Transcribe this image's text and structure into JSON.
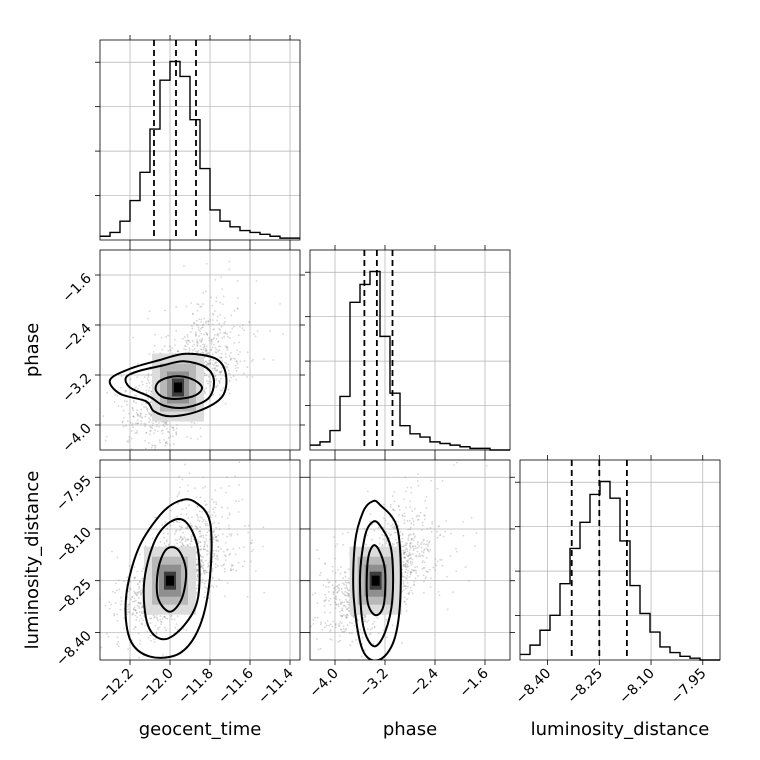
{
  "chart_data": {
    "type": "corner",
    "parameters": [
      {
        "name": "geocent_time",
        "xlabel": "geocent_time",
        "ylabel": "",
        "range": [
          -12.35,
          -11.35
        ],
        "ticks": [
          -12.2,
          -12.0,
          -11.8,
          -11.6,
          -11.4
        ],
        "tick_labels": [
          "−12.2",
          "−12.0",
          "−11.8",
          "−11.6",
          "−11.4"
        ],
        "quantiles": [
          -12.08,
          -11.97,
          -11.87
        ]
      },
      {
        "name": "phase",
        "xlabel": "phase",
        "ylabel": "phase",
        "range": [
          -4.4,
          -1.2
        ],
        "ticks": [
          -4.0,
          -3.2,
          -2.4,
          -1.6
        ],
        "tick_labels": [
          "−4.0",
          "−3.2",
          "−2.4",
          "−1.6"
        ],
        "quantiles": [
          -3.53,
          -3.33,
          -3.08
        ]
      },
      {
        "name": "luminosity_distance",
        "xlabel": "luminosity_distance",
        "ylabel": "luminosity_distance",
        "range": [
          -8.48,
          -7.9
        ],
        "ticks": [
          -8.4,
          -8.25,
          -8.1,
          -7.95
        ],
        "tick_labels": [
          "−8.40",
          "−8.25",
          "−8.10",
          "−7.95"
        ],
        "quantiles": [
          -8.33,
          -8.25,
          -8.17
        ]
      }
    ],
    "histograms": [
      {
        "param": "geocent_time",
        "edges": [
          -12.35,
          -12.3,
          -12.25,
          -12.2,
          -12.15,
          -12.1,
          -12.05,
          -12.0,
          -11.95,
          -11.9,
          -11.85,
          -11.8,
          -11.75,
          -11.7,
          -11.65,
          -11.6,
          -11.55,
          -11.5,
          -11.45,
          -11.4,
          -11.35
        ],
        "counts": [
          2,
          4,
          10,
          21,
          36,
          59,
          85,
          95,
          87,
          64,
          38,
          16,
          10,
          7,
          5,
          4,
          3,
          2,
          1,
          1
        ]
      },
      {
        "param": "phase",
        "edges": [
          -4.4,
          -4.24,
          -4.08,
          -3.92,
          -3.76,
          -3.6,
          -3.44,
          -3.28,
          -3.12,
          -2.96,
          -2.8,
          -2.64,
          -2.48,
          -2.32,
          -2.16,
          -2.0,
          -1.84,
          -1.68,
          -1.52,
          -1.36,
          -1.2
        ],
        "counts": [
          3,
          5,
          12,
          33,
          91,
          102,
          110,
          70,
          35,
          15,
          10,
          8,
          5,
          4,
          3,
          2,
          1,
          1,
          0,
          0
        ]
      },
      {
        "param": "luminosity_distance",
        "edges": [
          -8.48,
          -8.451,
          -8.422,
          -8.393,
          -8.364,
          -8.335,
          -8.306,
          -8.277,
          -8.248,
          -8.219,
          -8.19,
          -8.161,
          -8.132,
          -8.103,
          -8.074,
          -8.045,
          -8.016,
          -7.987,
          -7.958,
          -7.929,
          -7.9
        ],
        "counts": [
          3,
          8,
          16,
          24,
          41,
          60,
          74,
          89,
          96,
          87,
          64,
          40,
          25,
          15,
          7,
          4,
          2,
          1,
          0,
          0
        ]
      }
    ],
    "pairs": [
      {
        "x": "geocent_time",
        "y": "phase",
        "peak": [
          -11.96,
          -3.4
        ],
        "contours": [
          [
            [
              -11.95,
              -3.22
            ],
            [
              -11.88,
              -3.28
            ],
            [
              -11.84,
              -3.4
            ],
            [
              -11.87,
              -3.52
            ],
            [
              -11.95,
              -3.58
            ],
            [
              -12.03,
              -3.56
            ],
            [
              -12.07,
              -3.45
            ],
            [
              -12.06,
              -3.32
            ],
            [
              -12.01,
              -3.24
            ]
          ],
          [
            [
              -11.93,
              -2.98
            ],
            [
              -11.82,
              -3.08
            ],
            [
              -11.78,
              -3.3
            ],
            [
              -11.81,
              -3.58
            ],
            [
              -11.92,
              -3.72
            ],
            [
              -12.03,
              -3.69
            ],
            [
              -12.1,
              -3.55
            ],
            [
              -12.2,
              -3.4
            ],
            [
              -12.22,
              -3.24
            ],
            [
              -12.16,
              -3.14
            ],
            [
              -12.04,
              -3.05
            ]
          ],
          [
            [
              -11.92,
              -2.86
            ],
            [
              -11.77,
              -2.94
            ],
            [
              -11.72,
              -3.2
            ],
            [
              -11.74,
              -3.55
            ],
            [
              -11.86,
              -3.78
            ],
            [
              -12.0,
              -3.86
            ],
            [
              -12.08,
              -3.78
            ],
            [
              -12.12,
              -3.62
            ],
            [
              -12.25,
              -3.5
            ],
            [
              -12.3,
              -3.28
            ],
            [
              -12.2,
              -3.1
            ],
            [
              -12.05,
              -2.96
            ]
          ]
        ]
      },
      {
        "x": "geocent_time",
        "y": "luminosity_distance",
        "peak": [
          -12.0,
          -8.25
        ],
        "contours": [
          [
            [
              -11.96,
              -8.16
            ],
            [
              -11.92,
              -8.22
            ],
            [
              -11.94,
              -8.3
            ],
            [
              -12.0,
              -8.34
            ],
            [
              -12.06,
              -8.3
            ],
            [
              -12.06,
              -8.22
            ],
            [
              -12.02,
              -8.16
            ]
          ],
          [
            [
              -11.92,
              -8.08
            ],
            [
              -11.86,
              -8.16
            ],
            [
              -11.86,
              -8.3
            ],
            [
              -11.93,
              -8.38
            ],
            [
              -12.03,
              -8.42
            ],
            [
              -12.11,
              -8.38
            ],
            [
              -12.13,
              -8.26
            ],
            [
              -12.08,
              -8.14
            ],
            [
              -12.0,
              -8.08
            ]
          ],
          [
            [
              -11.88,
              -8.02
            ],
            [
              -11.8,
              -8.08
            ],
            [
              -11.8,
              -8.24
            ],
            [
              -11.85,
              -8.38
            ],
            [
              -11.95,
              -8.46
            ],
            [
              -12.1,
              -8.47
            ],
            [
              -12.2,
              -8.42
            ],
            [
              -12.22,
              -8.3
            ],
            [
              -12.16,
              -8.16
            ],
            [
              -12.05,
              -8.06
            ],
            [
              -11.96,
              -8.02
            ]
          ]
        ]
      },
      {
        "x": "phase",
        "y": "luminosity_distance",
        "peak": [
          -3.35,
          -8.25
        ],
        "contours": [
          [
            [
              -3.3,
              -8.16
            ],
            [
              -3.2,
              -8.22
            ],
            [
              -3.22,
              -8.32
            ],
            [
              -3.35,
              -8.35
            ],
            [
              -3.48,
              -8.31
            ],
            [
              -3.48,
              -8.2
            ],
            [
              -3.4,
              -8.15
            ]
          ],
          [
            [
              -3.28,
              -8.09
            ],
            [
              -3.1,
              -8.16
            ],
            [
              -3.08,
              -8.3
            ],
            [
              -3.2,
              -8.4
            ],
            [
              -3.38,
              -8.44
            ],
            [
              -3.55,
              -8.38
            ],
            [
              -3.6,
              -8.24
            ],
            [
              -3.52,
              -8.12
            ],
            [
              -3.4,
              -8.08
            ]
          ],
          [
            [
              -3.28,
              -8.03
            ],
            [
              -3.0,
              -8.1
            ],
            [
              -2.95,
              -8.28
            ],
            [
              -3.05,
              -8.42
            ],
            [
              -3.3,
              -8.48
            ],
            [
              -3.56,
              -8.45
            ],
            [
              -3.7,
              -8.3
            ],
            [
              -3.68,
              -8.14
            ],
            [
              -3.55,
              -8.05
            ],
            [
              -3.4,
              -8.02
            ]
          ]
        ]
      }
    ]
  }
}
